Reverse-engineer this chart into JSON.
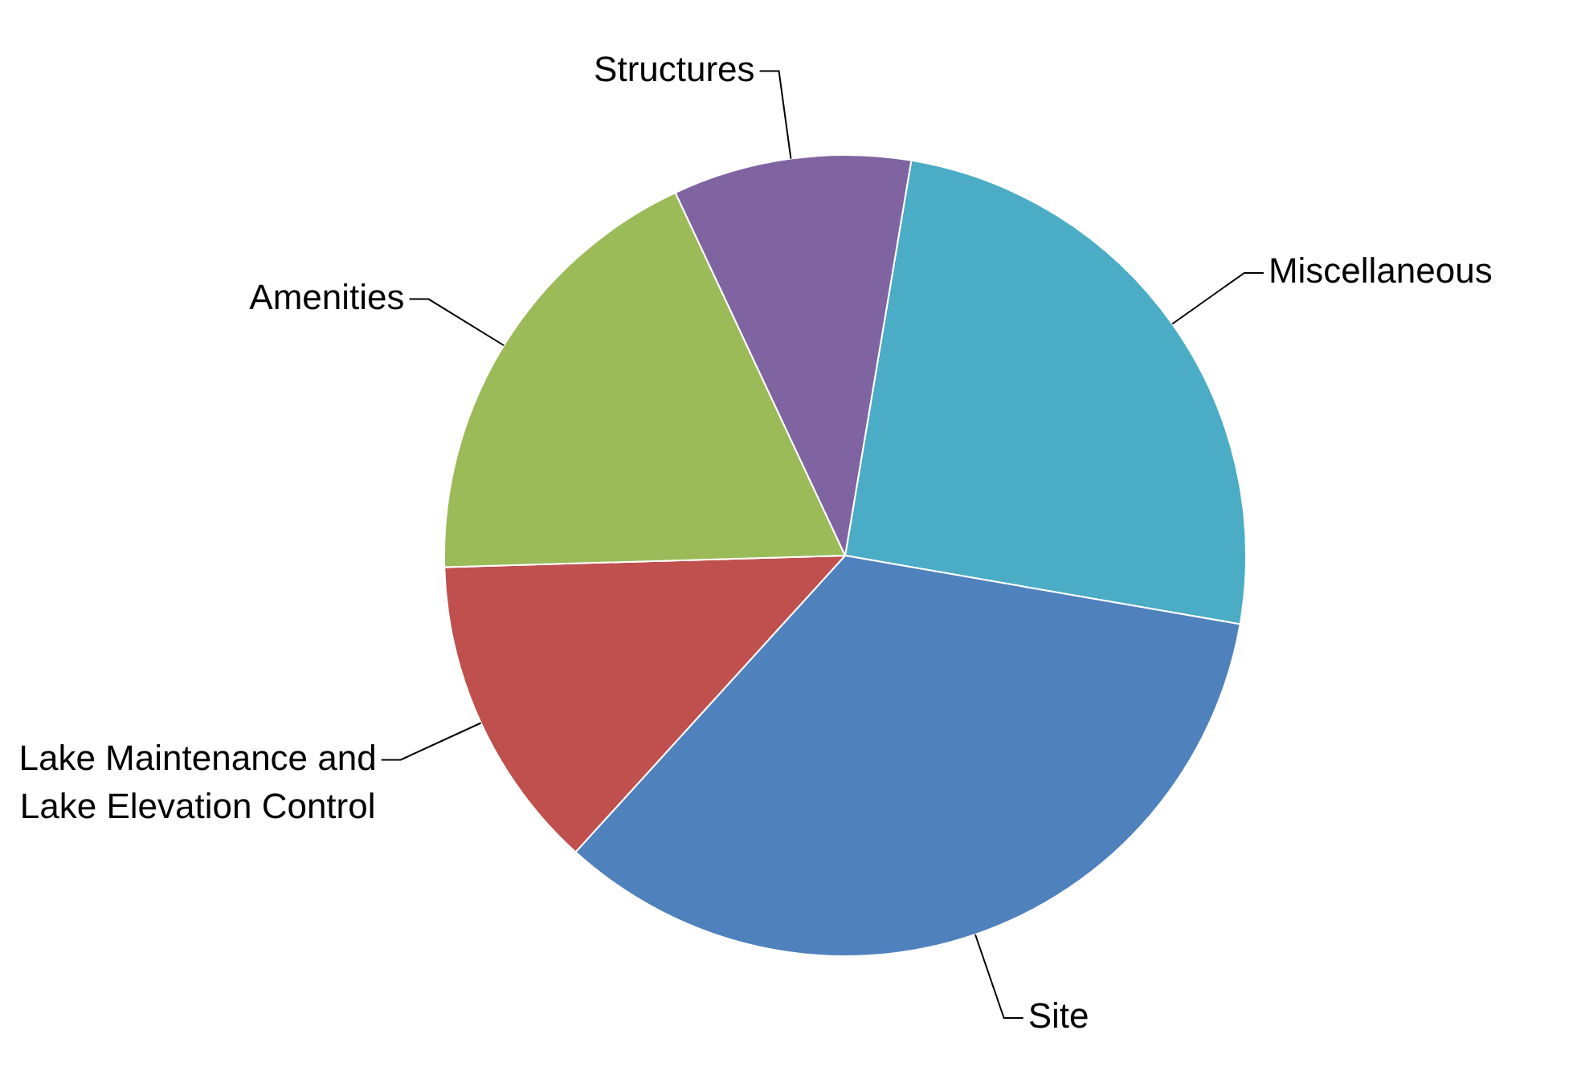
{
  "chart_data": {
    "type": "pie",
    "categories": [
      "Miscellaneous",
      "Site",
      "Lake Maintenance and Lake Elevation Control",
      "Amenities",
      "Structures"
    ],
    "values": [
      25.1,
      34.0,
      12.8,
      18.5,
      9.6
    ],
    "colors": [
      "#4bacc6",
      "#4f81bd",
      "#c0504d",
      "#9bbb59",
      "#8064a2"
    ],
    "legend": false
  }
}
